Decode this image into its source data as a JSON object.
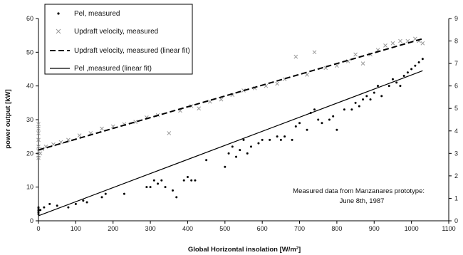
{
  "chart_data": {
    "type": "scatter",
    "xlabel": "Global Horizontal insolation [W/m²]",
    "ylabel": "power output [kW]",
    "xlim": [
      0,
      1100
    ],
    "ylim": [
      0,
      60
    ],
    "y2lim": [
      0,
      9
    ],
    "x_ticks": [
      0,
      100,
      200,
      300,
      400,
      500,
      600,
      700,
      800,
      900,
      1000,
      1100
    ],
    "y_ticks": [
      0,
      10,
      20,
      30,
      40,
      50,
      60
    ],
    "y2_ticks": [
      0,
      1,
      2,
      3,
      4,
      5,
      6,
      7,
      8,
      9
    ],
    "grid": false,
    "legend_position": "top-left",
    "annotation": {
      "line1": "Measured data from Manzanares prototype:",
      "line2": "June 8th, 1987"
    },
    "series": [
      {
        "name": "Pel, measured",
        "kind": "scatter",
        "marker": "dot",
        "axis": "left",
        "x": [
          0,
          0,
          0,
          0,
          0,
          5,
          15,
          30,
          50,
          80,
          100,
          120,
          130,
          170,
          180,
          230,
          290,
          300,
          310,
          320,
          330,
          340,
          360,
          370,
          390,
          400,
          410,
          420,
          450,
          500,
          510,
          520,
          530,
          540,
          550,
          560,
          570,
          590,
          600,
          620,
          640,
          650,
          660,
          680,
          690,
          700,
          720,
          730,
          740,
          750,
          760,
          780,
          790,
          800,
          820,
          840,
          850,
          860,
          870,
          880,
          890,
          900,
          910,
          920,
          940,
          950,
          960,
          970,
          980,
          990,
          1000,
          1010,
          1020,
          1030
        ],
        "y": [
          2,
          3,
          4,
          2.5,
          3.5,
          3.2,
          4,
          5,
          4.5,
          4,
          5,
          6,
          5.5,
          7,
          8,
          8,
          10,
          10,
          12,
          11,
          12,
          10,
          9,
          7,
          12,
          13,
          12,
          12,
          18,
          16,
          20,
          22,
          19,
          21,
          24,
          20,
          22,
          23,
          24,
          24,
          25,
          24,
          25,
          24,
          28,
          29,
          27,
          32,
          33,
          30,
          29,
          30,
          31,
          27,
          33,
          33,
          35,
          34,
          36,
          37,
          36,
          38,
          40,
          37,
          40,
          42,
          41,
          40,
          43,
          44,
          45,
          46,
          47,
          48
        ]
      },
      {
        "name": "Updraft velocity, measured",
        "kind": "scatter",
        "marker": "x",
        "axis": "right",
        "x": [
          0,
          0,
          0,
          0,
          0,
          0,
          0,
          0,
          5,
          10,
          20,
          40,
          60,
          80,
          110,
          140,
          170,
          200,
          230,
          260,
          290,
          320,
          350,
          380,
          410,
          430,
          460,
          490,
          520,
          550,
          580,
          610,
          640,
          660,
          690,
          720,
          740,
          770,
          800,
          830,
          850,
          870,
          890,
          910,
          930,
          950,
          970,
          990,
          1010,
          1020,
          1030
        ],
        "y": [
          2.8,
          3.1,
          3.3,
          3.6,
          3.9,
          4.1,
          4.3,
          2.9,
          3.0,
          3.2,
          3.3,
          3.4,
          3.5,
          3.6,
          3.8,
          3.9,
          4.1,
          4.2,
          4.3,
          4.4,
          4.6,
          4.7,
          3.9,
          4.9,
          5.1,
          5.0,
          5.3,
          5.4,
          5.6,
          5.8,
          5.9,
          6.0,
          6.1,
          6.3,
          7.3,
          6.5,
          7.5,
          6.8,
          6.9,
          7.1,
          7.4,
          7.0,
          7.4,
          7.6,
          7.8,
          7.9,
          8.0,
          8.0,
          8.1,
          8.0,
          7.9
        ]
      },
      {
        "name": "Updraft velocity, measured (linear fit)",
        "kind": "line",
        "dash": "dashed",
        "axis": "right",
        "x": [
          0,
          1030
        ],
        "y": [
          3.15,
          8.1
        ]
      },
      {
        "name": "Pel ,measured (linear fit)",
        "kind": "line",
        "dash": "solid",
        "axis": "left",
        "x": [
          0,
          1030
        ],
        "y": [
          1.5,
          44.5
        ]
      }
    ]
  }
}
